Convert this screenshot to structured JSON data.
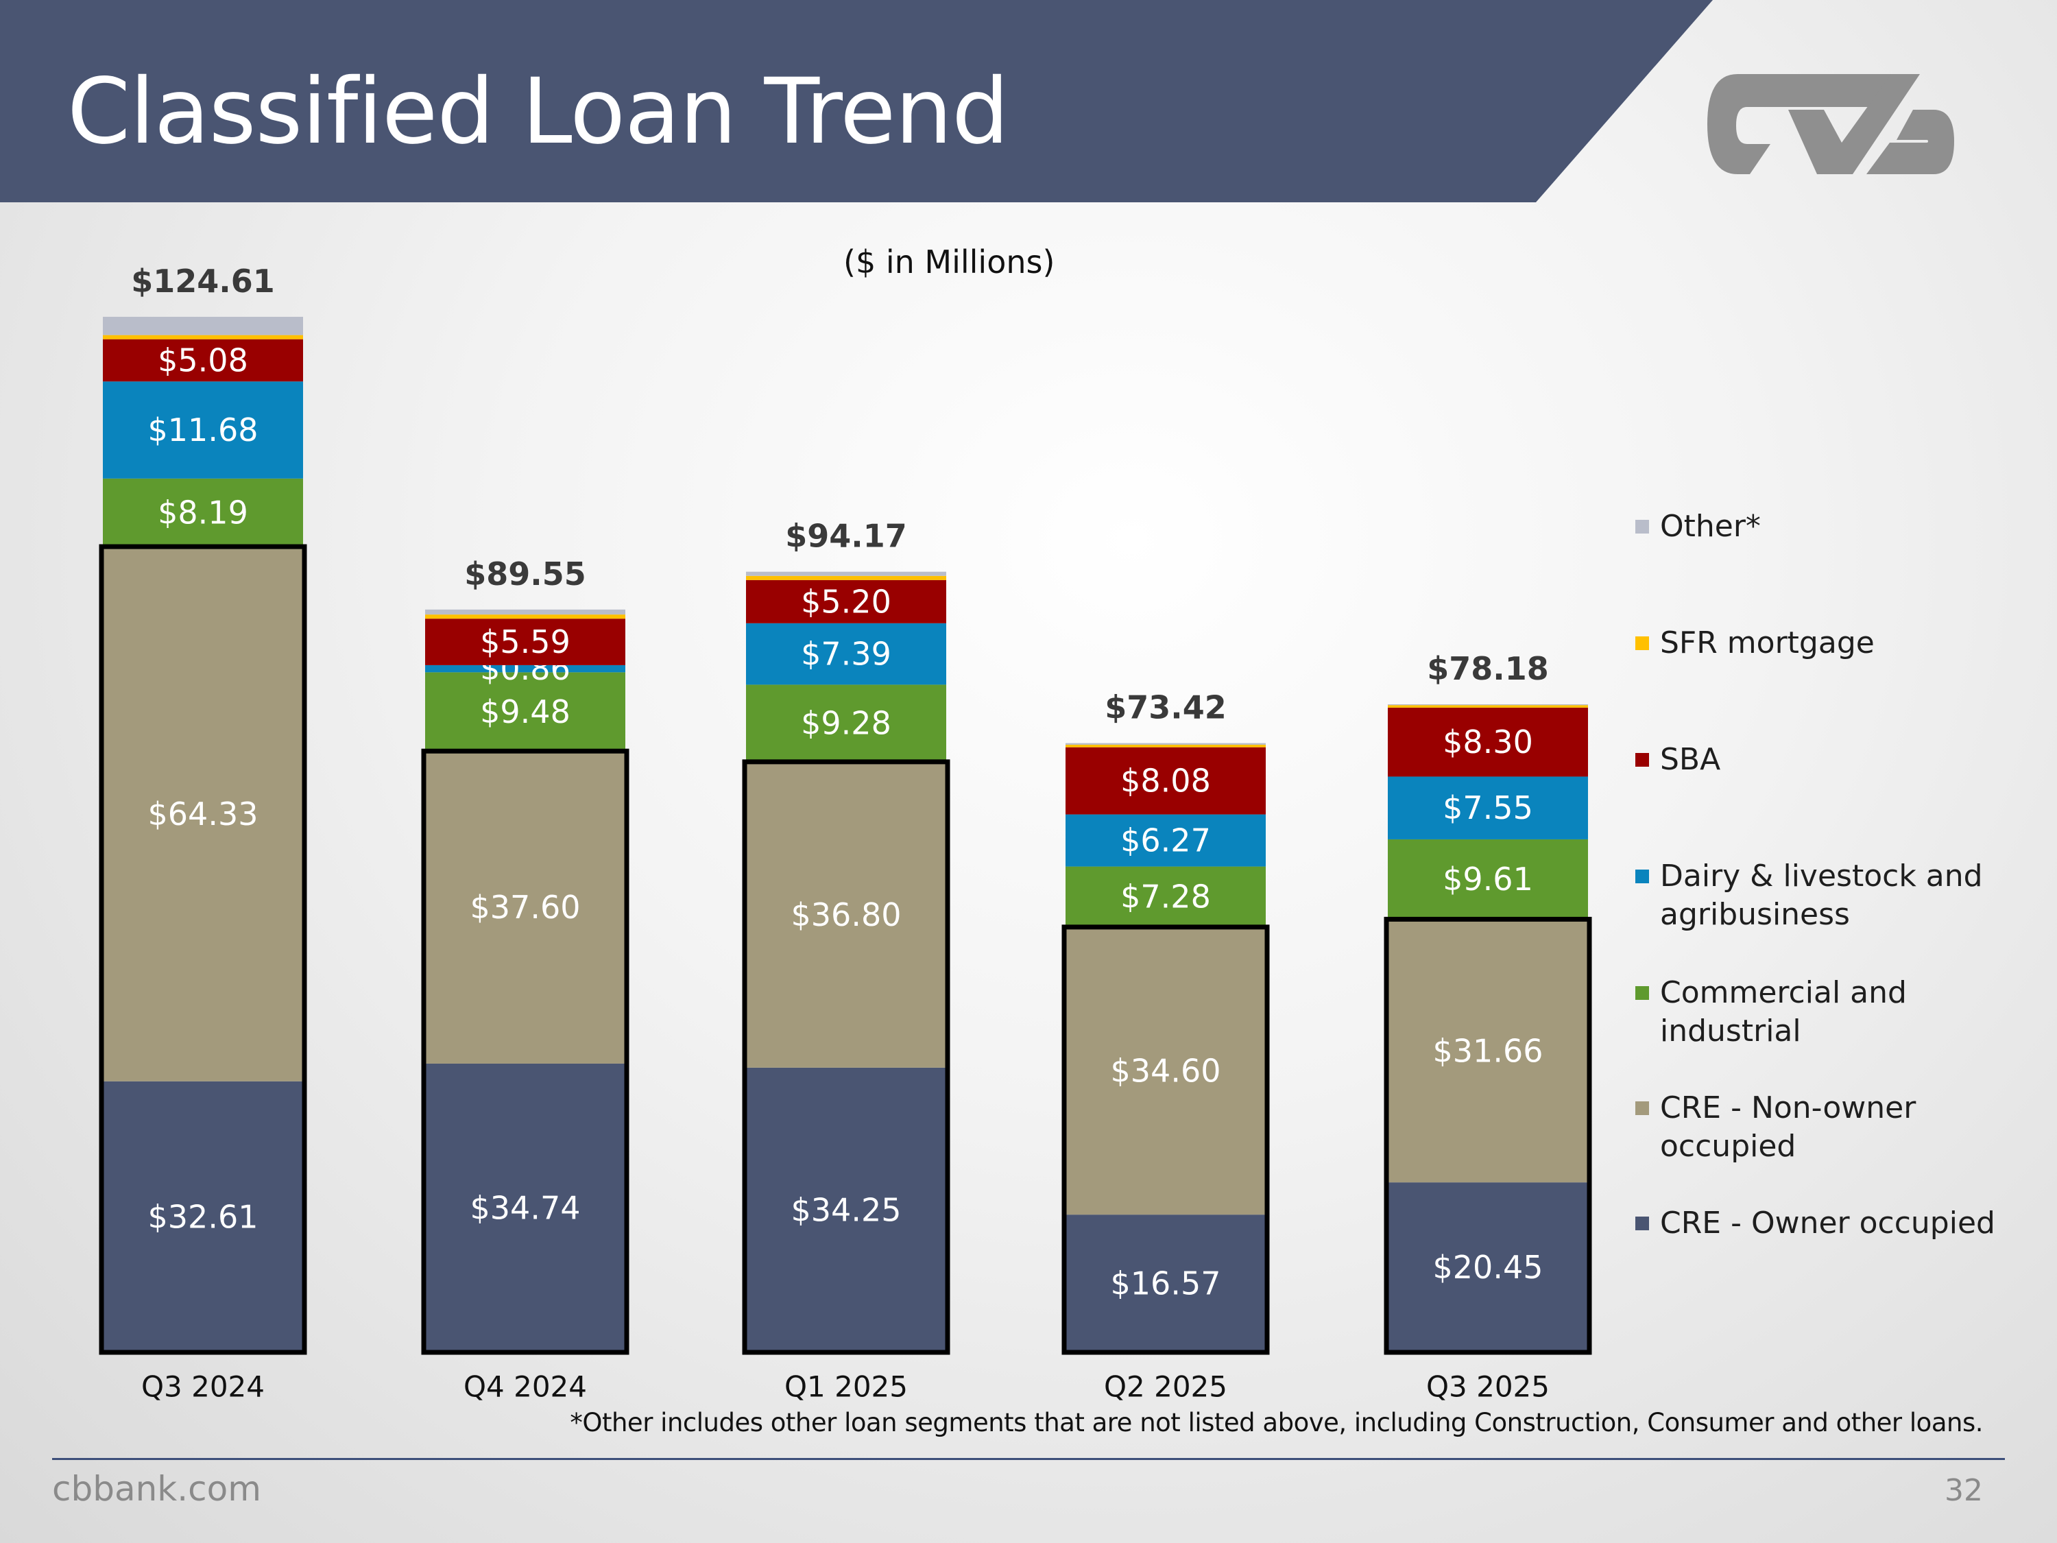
{
  "slide": {
    "title": "Classified Loan Trend",
    "subtitle": "($ in Millions)",
    "footnote": "*Other includes other loan segments that are not listed above, including Construction, Consumer and other loans.",
    "footer_site": "cbbank.com",
    "page_number": "32",
    "logo_text": "CVB"
  },
  "colors": {
    "banner": "#4a5572",
    "title_text": "#ffffff",
    "logo": "#8f8f8f"
  },
  "chart_data": {
    "type": "bar",
    "stacked": true,
    "title": "Classified Loan Trend",
    "subtitle": "($ in Millions)",
    "categories": [
      "Q3 2024",
      "Q4 2024",
      "Q1 2025",
      "Q2 2025",
      "Q3 2025"
    ],
    "totals": [
      124.61,
      89.55,
      94.17,
      73.42,
      78.18
    ],
    "total_labels": [
      "$124.61",
      "$89.55",
      "$94.17",
      "$73.42",
      "$78.18"
    ],
    "series": [
      {
        "name": "CRE - Owner occupied",
        "color": "#4a5572",
        "values": [
          32.61,
          34.74,
          34.25,
          16.57,
          20.45
        ],
        "labels": [
          "$32.61",
          "$34.74",
          "$34.25",
          "$16.57",
          "$20.45"
        ]
      },
      {
        "name": "CRE - Non-owner occupied",
        "color": "#a39a7c",
        "values": [
          64.33,
          37.6,
          36.8,
          34.6,
          31.66
        ],
        "labels": [
          "$64.33",
          "$37.60",
          "$36.80",
          "$34.60",
          "$31.66"
        ]
      },
      {
        "name": "Commercial and industrial",
        "color": "#5f9a2e",
        "values": [
          8.19,
          9.48,
          9.28,
          7.28,
          9.61
        ],
        "labels": [
          "$8.19",
          "$9.48",
          "$9.28",
          "$7.28",
          "$9.61"
        ]
      },
      {
        "name": "Dairy & livestock and agribusiness",
        "color": "#0a84bd",
        "values": [
          11.68,
          0.86,
          7.39,
          6.27,
          7.55
        ],
        "labels": [
          "$11.68",
          "$0.86",
          "$7.39",
          "$6.27",
          "$7.55"
        ]
      },
      {
        "name": "SBA",
        "color": "#990000",
        "values": [
          5.08,
          5.59,
          5.2,
          8.08,
          8.3
        ],
        "labels": [
          "$5.08",
          "$5.59",
          "$5.20",
          "$8.08",
          "$8.30"
        ]
      },
      {
        "name": "SFR mortgage",
        "color": "#ffc000",
        "values": [
          0.5,
          0.5,
          0.5,
          0.3,
          0.3
        ],
        "labels": [
          "",
          "",
          "",
          "",
          ""
        ]
      },
      {
        "name": "Other*",
        "color": "#b9bdca",
        "values": [
          2.2,
          0.6,
          0.5,
          0.2,
          0.1
        ],
        "labels": [
          "",
          "",
          "",
          "",
          ""
        ]
      }
    ],
    "legend_order": [
      "Other*",
      "SFR mortgage",
      "SBA",
      "Dairy & livestock and agribusiness",
      "Commercial and industrial",
      "CRE - Non-owner occupied",
      "CRE - Owner occupied"
    ],
    "highlighted_series": [
      "CRE - Owner occupied",
      "CRE - Non-owner occupied"
    ],
    "xlabel": "",
    "ylabel": "",
    "legend_position": "right",
    "grid": false
  }
}
